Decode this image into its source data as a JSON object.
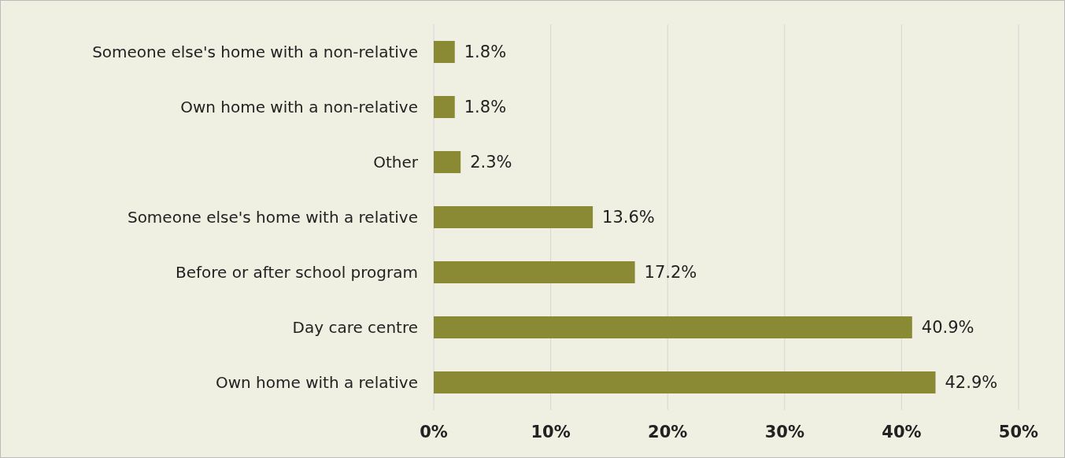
{
  "chart_data": {
    "type": "bar",
    "orientation": "horizontal",
    "categories": [
      "Someone else's home with a non-relative",
      "Own home with a non-relative",
      "Other",
      "Someone else's home with a relative",
      "Before or after school program",
      "Day care centre",
      "Own home with a relative"
    ],
    "values": [
      1.8,
      1.8,
      2.3,
      13.6,
      17.2,
      40.9,
      42.9
    ],
    "value_labels": [
      "1.8%",
      "1.8%",
      "2.3%",
      "13.6%",
      "17.2%",
      "40.9%",
      "42.9%"
    ],
    "color": "#8a8a35",
    "xlim": [
      0,
      50
    ],
    "xticks": [
      {
        "value": 0,
        "label": "0%"
      },
      {
        "value": 10,
        "label": "10%"
      },
      {
        "value": 20,
        "label": "20%"
      },
      {
        "value": 30,
        "label": "30%"
      },
      {
        "value": 40,
        "label": "40%"
      },
      {
        "value": 50,
        "label": "50%"
      }
    ],
    "grid": "x"
  }
}
